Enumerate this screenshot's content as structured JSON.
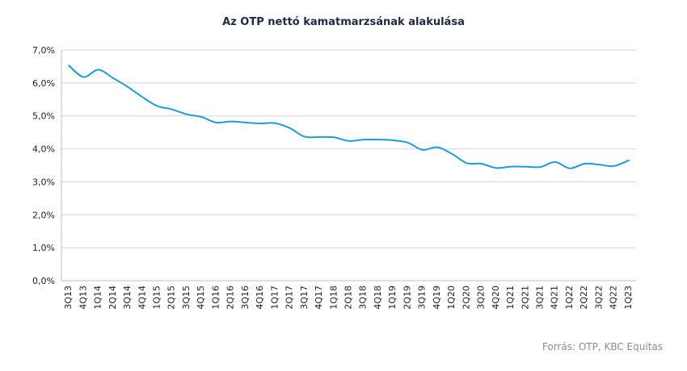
{
  "chart_data": {
    "type": "line",
    "title": "Az OTP nettó kamatmarzsának alakulása",
    "xlabel": "",
    "ylabel": "",
    "source": "Forrás: OTP, KBC Equitas",
    "y_ticks": [
      "0,0%",
      "1,0%",
      "2,0%",
      "3,0%",
      "4,0%",
      "5,0%",
      "6,0%",
      "7,0%"
    ],
    "ylim": [
      0,
      7
    ],
    "grid": "horizontal",
    "legend": "none",
    "x": [
      "3Q13",
      "4Q13",
      "1Q14",
      "2Q14",
      "3Q14",
      "4Q14",
      "1Q15",
      "2Q15",
      "3Q15",
      "4Q15",
      "1Q16",
      "2Q16",
      "3Q16",
      "4Q16",
      "1Q17",
      "2Q17",
      "3Q17",
      "4Q17",
      "1Q18",
      "2Q18",
      "3Q18",
      "4Q18",
      "1Q19",
      "2Q19",
      "3Q19",
      "4Q19",
      "1Q20",
      "2Q20",
      "3Q20",
      "4Q20",
      "1Q21",
      "2Q21",
      "3Q21",
      "4Q21",
      "1Q22",
      "2Q22",
      "3Q22",
      "4Q22",
      "1Q23"
    ],
    "series": [
      {
        "color": "#1a9fd4",
        "values": [
          6.53,
          6.18,
          6.4,
          6.15,
          5.88,
          5.57,
          5.3,
          5.2,
          5.05,
          4.97,
          4.8,
          4.83,
          4.8,
          4.77,
          4.78,
          4.63,
          4.37,
          4.36,
          4.35,
          4.24,
          4.28,
          4.28,
          4.26,
          4.19,
          3.97,
          4.05,
          3.85,
          3.57,
          3.55,
          3.42,
          3.46,
          3.46,
          3.45,
          3.6,
          3.41,
          3.55,
          3.52,
          3.48,
          3.65
        ]
      }
    ]
  }
}
